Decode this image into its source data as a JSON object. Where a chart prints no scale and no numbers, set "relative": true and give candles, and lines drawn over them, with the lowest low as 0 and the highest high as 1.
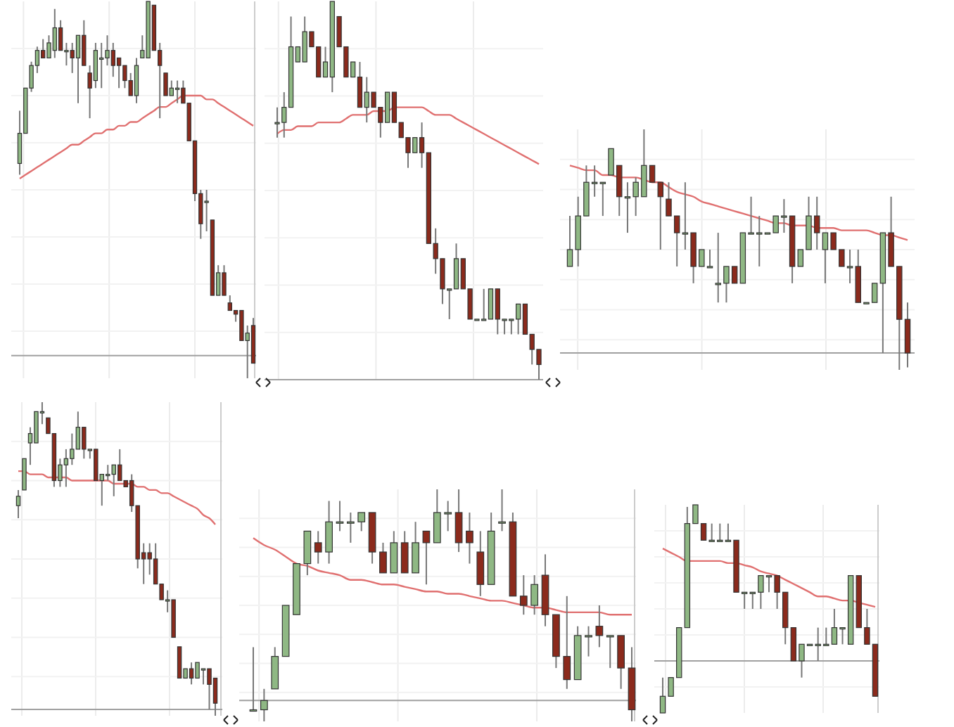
{
  "chart_data": [
    {
      "type": "candlestick",
      "relative": true,
      "grid": true,
      "categories": [
        null,
        null,
        null,
        null,
        null,
        null,
        null,
        null,
        null,
        null,
        null,
        null,
        null,
        null,
        null,
        null,
        null,
        null,
        null,
        null,
        null,
        null,
        null,
        null,
        null,
        null,
        null,
        null,
        null,
        null,
        null,
        null,
        null,
        null,
        null,
        null,
        null,
        null,
        null,
        null,
        null
      ],
      "ohlc": [
        [
          0.57,
          0.71,
          0.54,
          0.65
        ],
        [
          0.65,
          0.77,
          0.65,
          0.77
        ],
        [
          0.77,
          0.84,
          0.76,
          0.83
        ],
        [
          0.83,
          0.88,
          0.81,
          0.87
        ],
        [
          0.87,
          0.9,
          0.85,
          0.85
        ],
        [
          0.85,
          0.91,
          0.85,
          0.89
        ],
        [
          0.87,
          0.98,
          0.85,
          0.93
        ],
        [
          0.93,
          0.95,
          0.87,
          0.87
        ],
        [
          0.87,
          0.89,
          0.83,
          0.87
        ],
        [
          0.87,
          0.89,
          0.81,
          0.85
        ],
        [
          0.85,
          0.91,
          0.73,
          0.91
        ],
        [
          0.91,
          0.95,
          0.83,
          0.83
        ],
        [
          0.81,
          0.83,
          0.69,
          0.77
        ],
        [
          0.79,
          0.89,
          0.77,
          0.87
        ],
        [
          0.85,
          0.89,
          0.77,
          0.85
        ],
        [
          0.85,
          0.91,
          0.83,
          0.87
        ],
        [
          0.87,
          0.89,
          0.8,
          0.83
        ],
        [
          0.85,
          0.85,
          0.77,
          0.83
        ],
        [
          0.83,
          0.83,
          0.77,
          0.79
        ],
        [
          0.79,
          0.81,
          0.75,
          0.75
        ],
        [
          0.75,
          0.85,
          0.73,
          0.83
        ],
        [
          0.85,
          0.91,
          0.85,
          0.87
        ],
        [
          0.85,
          1,
          0.85,
          1
        ],
        [
          0.99,
          0.99,
          0.87,
          0.87
        ],
        [
          0.87,
          0.89,
          0.69,
          0.83
        ],
        [
          0.81,
          0.81,
          0.75,
          0.75
        ],
        [
          0.75,
          0.79,
          0.75,
          0.77
        ],
        [
          0.77,
          0.79,
          0.73,
          0.77
        ],
        [
          0.77,
          0.79,
          0.73,
          0.73
        ],
        [
          0.73,
          0.73,
          0.63,
          0.63
        ],
        [
          0.63,
          0.63,
          0.47,
          0.49
        ],
        [
          0.49,
          0.5,
          0.37,
          0.41
        ],
        [
          0.47,
          0.5,
          0.39,
          0.47
        ],
        [
          0.42,
          0.42,
          0.22,
          0.22
        ],
        [
          0.22,
          0.3,
          0.22,
          0.28
        ],
        [
          0.28,
          0.3,
          0.22,
          0.22
        ],
        [
          0.2,
          0.22,
          0.18,
          0.18
        ],
        [
          0.18,
          0.18,
          0.15,
          0.17
        ],
        [
          0.18,
          0.18,
          0.1,
          0.1
        ],
        [
          0.1,
          0.14,
          0,
          0.12
        ],
        [
          0.14,
          0.16,
          0.04,
          0.04
        ]
      ],
      "series": [
        {
          "type": "line",
          "color": "#e07070",
          "values": [
            0.53,
            0.54,
            0.55,
            0.56,
            0.57,
            0.58,
            0.59,
            0.6,
            0.61,
            0.62,
            0.62,
            0.63,
            0.64,
            0.65,
            0.65,
            0.66,
            0.66,
            0.67,
            0.67,
            0.68,
            0.68,
            0.69,
            0.7,
            0.71,
            0.72,
            0.72,
            0.73,
            0.74,
            0.75,
            0.75,
            0.75,
            0.75,
            0.74,
            0.74,
            0.73,
            0.72,
            0.71,
            0.7,
            0.69,
            0.68,
            0.67
          ]
        }
      ],
      "ref_lines": [
        {
          "axis": "y",
          "value": 0.06,
          "color": "#a0a0a0"
        }
      ]
    },
    {
      "type": "candlestick",
      "relative": true,
      "grid": true,
      "categories": [
        null,
        null,
        null,
        null,
        null,
        null,
        null,
        null,
        null,
        null,
        null,
        null,
        null,
        null,
        null,
        null,
        null,
        null,
        null,
        null,
        null,
        null,
        null,
        null,
        null,
        null,
        null,
        null,
        null,
        null,
        null,
        null,
        null,
        null,
        null,
        null,
        null,
        null,
        null
      ],
      "ohlc": [
        [
          0.68,
          0.72,
          0.64,
          0.68
        ],
        [
          0.68,
          0.76,
          0.64,
          0.72
        ],
        [
          0.72,
          0.96,
          0.72,
          0.88
        ],
        [
          0.84,
          0.88,
          0.84,
          0.88
        ],
        [
          0.84,
          0.96,
          0.84,
          0.92
        ],
        [
          0.92,
          0.92,
          0.88,
          0.88
        ],
        [
          0.88,
          0.88,
          0.8,
          0.8
        ],
        [
          0.8,
          0.88,
          0.8,
          0.84
        ],
        [
          0.8,
          1,
          0.76,
          1
        ],
        [
          0.96,
          0.96,
          0.88,
          0.88
        ],
        [
          0.88,
          0.88,
          0.8,
          0.8
        ],
        [
          0.8,
          0.84,
          0.8,
          0.84
        ],
        [
          0.8,
          0.84,
          0.72,
          0.72
        ],
        [
          0.72,
          0.8,
          0.68,
          0.76
        ],
        [
          0.76,
          0.76,
          0.72,
          0.72
        ],
        [
          0.72,
          0.72,
          0.64,
          0.68
        ],
        [
          0.68,
          0.76,
          0.68,
          0.76
        ],
        [
          0.76,
          0.76,
          0.68,
          0.68
        ],
        [
          0.68,
          0.68,
          0.64,
          0.64
        ],
        [
          0.64,
          0.64,
          0.56,
          0.6
        ],
        [
          0.6,
          0.64,
          0.6,
          0.64
        ],
        [
          0.64,
          0.68,
          0.56,
          0.6
        ],
        [
          0.6,
          0.6,
          0.36,
          0.36
        ],
        [
          0.36,
          0.4,
          0.28,
          0.32
        ],
        [
          0.32,
          0.32,
          0.2,
          0.24
        ],
        [
          0.24,
          0.24,
          0.16,
          0.24
        ],
        [
          0.24,
          0.36,
          0.24,
          0.32
        ],
        [
          0.32,
          0.32,
          0.24,
          0.24
        ],
        [
          0.24,
          0.24,
          0.16,
          0.16
        ],
        [
          0.16,
          0.16,
          0.16,
          0.16
        ],
        [
          0.16,
          0.24,
          0.16,
          0.16
        ],
        [
          0.16,
          0.24,
          0.16,
          0.24
        ],
        [
          0.24,
          0.24,
          0.12,
          0.16
        ],
        [
          0.16,
          0.16,
          0.12,
          0.16
        ],
        [
          0.16,
          0.16,
          0.12,
          0.16
        ],
        [
          0.16,
          0.2,
          0.12,
          0.2
        ],
        [
          0.2,
          0.2,
          0.12,
          0.12
        ],
        [
          0.12,
          0.12,
          0.04,
          0.08
        ],
        [
          0.08,
          0.08,
          0,
          0.04
        ]
      ],
      "series": [
        {
          "type": "line",
          "color": "#e07070",
          "values": [
            0.65,
            0.66,
            0.66,
            0.67,
            0.67,
            0.67,
            0.68,
            0.68,
            0.68,
            0.68,
            0.69,
            0.7,
            0.7,
            0.7,
            0.71,
            0.71,
            0.71,
            0.72,
            0.72,
            0.72,
            0.72,
            0.72,
            0.71,
            0.7,
            0.7,
            0.7,
            0.69,
            0.68,
            0.67,
            0.66,
            0.65,
            0.64,
            0.63,
            0.62,
            0.61,
            0.6,
            0.59,
            0.58,
            0.57
          ]
        }
      ],
      "ref_lines": [
        {
          "axis": "y",
          "value": 0,
          "color": "#a0a0a0"
        }
      ]
    },
    {
      "type": "candlestick",
      "relative": true,
      "grid": true,
      "categories": [
        null,
        null,
        null,
        null,
        null,
        null,
        null,
        null,
        null,
        null,
        null,
        null,
        null,
        null,
        null,
        null,
        null,
        null,
        null,
        null,
        null,
        null,
        null,
        null,
        null,
        null,
        null,
        null,
        null,
        null,
        null,
        null,
        null,
        null,
        null,
        null,
        null,
        null,
        null,
        null,
        null,
        null
      ],
      "ohlc": [
        [
          0.43,
          0.64,
          0.43,
          0.5
        ],
        [
          0.5,
          0.72,
          0.43,
          0.64
        ],
        [
          0.64,
          0.85,
          0.64,
          0.78
        ],
        [
          0.78,
          0.85,
          0.72,
          0.78
        ],
        [
          0.78,
          0.78,
          0.64,
          0.78
        ],
        [
          0.81,
          0.92,
          0.81,
          0.92
        ],
        [
          0.85,
          0.85,
          0.64,
          0.72
        ],
        [
          0.72,
          0.78,
          0.57,
          0.72
        ],
        [
          0.72,
          0.8,
          0.64,
          0.78
        ],
        [
          0.72,
          1,
          0.72,
          0.85
        ],
        [
          0.85,
          0.85,
          0.78,
          0.78
        ],
        [
          0.78,
          0.78,
          0.5,
          0.72
        ],
        [
          0.71,
          0.78,
          0.64,
          0.64
        ],
        [
          0.64,
          0.64,
          0.43,
          0.57
        ],
        [
          0.57,
          0.78,
          0.5,
          0.57
        ],
        [
          0.57,
          0.57,
          0.36,
          0.43
        ],
        [
          0.43,
          0.5,
          0.43,
          0.5
        ],
        [
          0.43,
          0.5,
          0.43,
          0.43
        ],
        [
          0.36,
          0.57,
          0.28,
          0.36
        ],
        [
          0.36,
          0.43,
          0.28,
          0.43
        ],
        [
          0.43,
          0.43,
          0.36,
          0.36
        ],
        [
          0.36,
          0.57,
          0.36,
          0.57
        ],
        [
          0.57,
          0.72,
          0.57,
          0.57
        ],
        [
          0.57,
          0.64,
          0.43,
          0.57
        ],
        [
          0.57,
          0.57,
          0.57,
          0.57
        ],
        [
          0.57,
          0.64,
          0.57,
          0.64
        ],
        [
          0.64,
          0.71,
          0.57,
          0.64
        ],
        [
          0.64,
          0.64,
          0.36,
          0.43
        ],
        [
          0.43,
          0.5,
          0.43,
          0.5
        ],
        [
          0.5,
          0.72,
          0.5,
          0.64
        ],
        [
          0.64,
          0.72,
          0.5,
          0.57
        ],
        [
          0.5,
          0.57,
          0.36,
          0.57
        ],
        [
          0.57,
          0.57,
          0.5,
          0.5
        ],
        [
          0.5,
          0.5,
          0.43,
          0.43
        ],
        [
          0.43,
          0.5,
          0.36,
          0.43
        ],
        [
          0.43,
          0.5,
          0.28,
          0.28
        ],
        [
          0.28,
          0.28,
          0.28,
          0.28
        ],
        [
          0.28,
          0.36,
          0.28,
          0.36
        ],
        [
          0.36,
          0.57,
          0.07,
          0.57
        ],
        [
          0.57,
          0.72,
          0.43,
          0.43
        ],
        [
          0.43,
          0.43,
          0,
          0.21
        ],
        [
          0.21,
          0.28,
          0.01,
          0.07
        ]
      ],
      "series": [
        {
          "type": "line",
          "color": "#e07070",
          "values": [
            0.85,
            0.84,
            0.83,
            0.83,
            0.81,
            0.81,
            0.8,
            0.8,
            0.8,
            0.79,
            0.78,
            0.78,
            0.76,
            0.74,
            0.73,
            0.72,
            0.7,
            0.69,
            0.68,
            0.67,
            0.66,
            0.65,
            0.64,
            0.63,
            0.62,
            0.61,
            0.61,
            0.6,
            0.6,
            0.6,
            0.59,
            0.59,
            0.59,
            0.58,
            0.58,
            0.58,
            0.58,
            0.57,
            0.56,
            0.56,
            0.55,
            0.54
          ]
        }
      ],
      "ref_lines": [
        {
          "axis": "y",
          "value": 0.07,
          "color": "#a0a0a0"
        }
      ]
    },
    {
      "type": "candlestick",
      "relative": true,
      "grid": true,
      "categories": [
        null,
        null,
        null,
        null,
        null,
        null,
        null,
        null,
        null,
        null,
        null,
        null,
        null,
        null,
        null,
        null,
        null,
        null,
        null,
        null,
        null,
        null,
        null,
        null,
        null,
        null,
        null,
        null,
        null,
        null,
        null,
        null,
        null,
        null
      ],
      "ohlc": [
        [
          0.67,
          0.72,
          0.63,
          0.7
        ],
        [
          0.72,
          0.82,
          0.72,
          0.82
        ],
        [
          0.87,
          0.92,
          0.8,
          0.9
        ],
        [
          0.87,
          0.97,
          0.87,
          0.97
        ],
        [
          0.97,
          1,
          0.93,
          0.97
        ],
        [
          0.95,
          0.95,
          0.9,
          0.9
        ],
        [
          0.9,
          0.9,
          0.73,
          0.75
        ],
        [
          0.75,
          0.82,
          0.73,
          0.8
        ],
        [
          0.8,
          0.85,
          0.73,
          0.82
        ],
        [
          0.82,
          0.9,
          0.8,
          0.85
        ],
        [
          0.85,
          0.97,
          0.85,
          0.92
        ],
        [
          0.92,
          0.92,
          0.82,
          0.85
        ],
        [
          0.85,
          0.85,
          0.82,
          0.85
        ],
        [
          0.85,
          0.85,
          0.75,
          0.75
        ],
        [
          0.75,
          0.77,
          0.67,
          0.77
        ],
        [
          0.77,
          0.8,
          0.75,
          0.77
        ],
        [
          0.77,
          0.8,
          0.7,
          0.8
        ],
        [
          0.8,
          0.85,
          0.75,
          0.75
        ],
        [
          0.75,
          0.75,
          0.73,
          0.73
        ],
        [
          0.75,
          0.77,
          0.65,
          0.67
        ],
        [
          0.67,
          0.67,
          0.47,
          0.5
        ],
        [
          0.52,
          0.55,
          0.42,
          0.5
        ],
        [
          0.52,
          0.55,
          0.45,
          0.5
        ],
        [
          0.5,
          0.55,
          0.42,
          0.42
        ],
        [
          0.42,
          0.42,
          0.37,
          0.37
        ],
        [
          0.37,
          0.4,
          0.33,
          0.37
        ],
        [
          0.37,
          0.37,
          0.25,
          0.25
        ],
        [
          0.22,
          0.22,
          0.12,
          0.12
        ],
        [
          0.12,
          0.15,
          0.12,
          0.15
        ],
        [
          0.15,
          0.17,
          0.1,
          0.12
        ],
        [
          0.12,
          0.17,
          0.12,
          0.17
        ],
        [
          0.15,
          0.15,
          0.1,
          0.15
        ],
        [
          0.15,
          0.15,
          0.02,
          0.1
        ],
        [
          0.12,
          0.12,
          0,
          0.04
        ]
      ],
      "series": [
        {
          "type": "line",
          "color": "#e07070",
          "values": [
            0.78,
            0.78,
            0.77,
            0.77,
            0.77,
            0.76,
            0.76,
            0.76,
            0.76,
            0.75,
            0.75,
            0.75,
            0.75,
            0.75,
            0.75,
            0.75,
            0.74,
            0.74,
            0.74,
            0.74,
            0.73,
            0.73,
            0.72,
            0.72,
            0.71,
            0.71,
            0.7,
            0.69,
            0.68,
            0.67,
            0.66,
            0.64,
            0.63,
            0.61
          ]
        }
      ],
      "ref_lines": [
        {
          "axis": "y",
          "value": 0.02,
          "color": "#a0a0a0"
        }
      ]
    },
    {
      "type": "candlestick",
      "relative": true,
      "grid": true,
      "categories": [
        null,
        null,
        null,
        null,
        null,
        null,
        null,
        null,
        null,
        null,
        null,
        null,
        null,
        null,
        null,
        null,
        null,
        null,
        null,
        null,
        null,
        null,
        null,
        null,
        null,
        null,
        null,
        null,
        null,
        null,
        null,
        null,
        null,
        null,
        null,
        null
      ],
      "ohlc": [
        [
          0.05,
          0.32,
          0.05,
          0.05
        ],
        [
          0.05,
          0.14,
          0,
          0.09
        ],
        [
          0.14,
          0.32,
          0.14,
          0.28
        ],
        [
          0.28,
          0.5,
          0.28,
          0.5
        ],
        [
          0.46,
          0.68,
          0.46,
          0.68
        ],
        [
          0.68,
          0.82,
          0.63,
          0.82
        ],
        [
          0.77,
          0.82,
          0.68,
          0.73
        ],
        [
          0.73,
          0.95,
          0.68,
          0.86
        ],
        [
          0.86,
          0.95,
          0.82,
          0.86
        ],
        [
          0.86,
          0.9,
          0.77,
          0.86
        ],
        [
          0.86,
          0.9,
          0.82,
          0.9
        ],
        [
          0.9,
          0.9,
          0.68,
          0.73
        ],
        [
          0.73,
          0.77,
          0.64,
          0.64
        ],
        [
          0.64,
          0.82,
          0.64,
          0.77
        ],
        [
          0.77,
          0.82,
          0.64,
          0.64
        ],
        [
          0.64,
          0.86,
          0.64,
          0.77
        ],
        [
          0.82,
          0.82,
          0.59,
          0.77
        ],
        [
          0.77,
          1,
          0.77,
          0.9
        ],
        [
          0.9,
          0.95,
          0.82,
          0.9
        ],
        [
          0.9,
          1,
          0.73,
          0.77
        ],
        [
          0.82,
          0.9,
          0.68,
          0.77
        ],
        [
          0.73,
          0.82,
          0.54,
          0.59
        ],
        [
          0.59,
          0.9,
          0.59,
          0.82
        ],
        [
          0.86,
          1,
          0.82,
          0.86
        ],
        [
          0.86,
          0.9,
          0.54,
          0.54
        ],
        [
          0.54,
          0.63,
          0.46,
          0.5
        ],
        [
          0.5,
          0.63,
          0.46,
          0.59
        ],
        [
          0.63,
          0.72,
          0.41,
          0.46
        ],
        [
          0.46,
          0.46,
          0.23,
          0.28
        ],
        [
          0.28,
          0.54,
          0.14,
          0.18
        ],
        [
          0.18,
          0.41,
          0.18,
          0.37
        ],
        [
          0.37,
          0.41,
          0.28,
          0.37
        ],
        [
          0.41,
          0.5,
          0.32,
          0.37
        ],
        [
          0.37,
          0.37,
          0.23,
          0.37
        ],
        [
          0.37,
          0.37,
          0.14,
          0.23
        ],
        [
          0.23,
          0.32,
          0,
          0.05
        ]
      ],
      "series": [
        {
          "type": "line",
          "color": "#e07070",
          "values": [
            0.79,
            0.76,
            0.74,
            0.71,
            0.68,
            0.67,
            0.65,
            0.64,
            0.63,
            0.61,
            0.61,
            0.6,
            0.59,
            0.59,
            0.58,
            0.57,
            0.56,
            0.56,
            0.55,
            0.55,
            0.54,
            0.53,
            0.52,
            0.52,
            0.51,
            0.5,
            0.49,
            0.49,
            0.48,
            0.47,
            0.47,
            0.47,
            0.47,
            0.46,
            0.46,
            0.46
          ]
        }
      ],
      "ref_lines": [
        {
          "axis": "y",
          "value": 0.09,
          "color": "#a0a0a0"
        }
      ]
    },
    {
      "type": "candlestick",
      "relative": true,
      "grid": true,
      "categories": [
        null,
        null,
        null,
        null,
        null,
        null,
        null,
        null,
        null,
        null,
        null,
        null,
        null,
        null,
        null,
        null,
        null,
        null,
        null,
        null,
        null,
        null,
        null,
        null,
        null,
        null,
        null
      ],
      "ohlc": [
        [
          0,
          0.17,
          0,
          0.08
        ],
        [
          0.08,
          0.17,
          0.08,
          0.17
        ],
        [
          0.17,
          0.41,
          0.17,
          0.41
        ],
        [
          0.41,
          0.99,
          0.41,
          0.91
        ],
        [
          0.91,
          1,
          0.91,
          1
        ],
        [
          0.91,
          0.91,
          0.83,
          0.83
        ],
        [
          0.83,
          0.91,
          0.83,
          0.83
        ],
        [
          0.83,
          0.91,
          0.83,
          0.83
        ],
        [
          0.83,
          0.91,
          0.83,
          0.83
        ],
        [
          0.83,
          0.83,
          0.58,
          0.58
        ],
        [
          0.58,
          0.58,
          0.5,
          0.58
        ],
        [
          0.58,
          0.58,
          0.5,
          0.58
        ],
        [
          0.58,
          0.66,
          0.5,
          0.66
        ],
        [
          0.66,
          0.66,
          0.58,
          0.66
        ],
        [
          0.66,
          0.66,
          0.5,
          0.58
        ],
        [
          0.58,
          0.58,
          0.33,
          0.41
        ],
        [
          0.41,
          0.41,
          0.25,
          0.25
        ],
        [
          0.25,
          0.33,
          0.17,
          0.33
        ],
        [
          0.33,
          0.33,
          0.33,
          0.33
        ],
        [
          0.33,
          0.41,
          0.25,
          0.33
        ],
        [
          0.33,
          0.41,
          0.33,
          0.33
        ],
        [
          0.33,
          0.5,
          0.33,
          0.41
        ],
        [
          0.41,
          0.41,
          0.33,
          0.41
        ],
        [
          0.33,
          0.66,
          0.33,
          0.66
        ],
        [
          0.66,
          0.66,
          0.41,
          0.41
        ],
        [
          0.41,
          0.5,
          0.33,
          0.33
        ],
        [
          0.33,
          0.33,
          0.08,
          0.08
        ]
      ],
      "series": [
        {
          "type": "line",
          "color": "#e07070",
          "values": [
            0.79,
            0.77,
            0.75,
            0.73,
            0.73,
            0.73,
            0.73,
            0.73,
            0.72,
            0.72,
            0.71,
            0.7,
            0.68,
            0.67,
            0.66,
            0.64,
            0.62,
            0.6,
            0.58,
            0.56,
            0.56,
            0.55,
            0.54,
            0.54,
            0.53,
            0.52,
            0.51
          ]
        }
      ],
      "ref_lines": [
        {
          "axis": "y",
          "value": 0.25,
          "color": "#a0a0a0"
        }
      ]
    }
  ]
}
